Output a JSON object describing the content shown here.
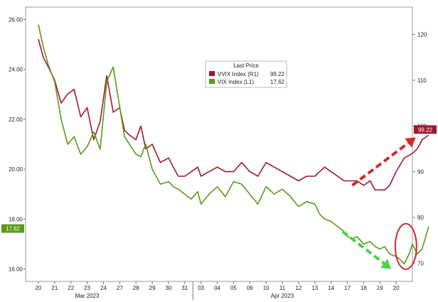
{
  "chart_data": {
    "type": "line",
    "legend_title": "Last Price",
    "legend_position": "top-center",
    "grid": true,
    "x_ticks": [
      "20",
      "21",
      "22",
      "23",
      "24",
      "27",
      "28",
      "29",
      "30",
      "31",
      "03",
      "04",
      "05",
      "06",
      "10",
      "11",
      "12",
      "13",
      "14",
      "17",
      "18",
      "19",
      "20"
    ],
    "x_month_labels": [
      {
        "label": "Mar 2023",
        "at_tick": "23"
      },
      {
        "label": "Apr 2023",
        "at_tick": "11"
      }
    ],
    "y_left": {
      "ylim": [
        15.5,
        26.5
      ],
      "ticks": [
        "16.00",
        "18.00",
        "20.00",
        "22.00",
        "24.00",
        "26.00"
      ]
    },
    "y_right": {
      "ylim": [
        66,
        126
      ],
      "ticks": [
        "70",
        "80",
        "90",
        "100",
        "110",
        "120"
      ]
    },
    "series": [
      {
        "name": "VVIX Index (R1)",
        "last": "99.22",
        "axis": "right",
        "color": "#a0182e",
        "x": [
          0,
          0.3,
          0.6,
          1,
          1.4,
          1.8,
          2.2,
          2.6,
          3,
          3.4,
          3.8,
          4.2,
          4.6,
          5,
          5.3,
          5.6,
          6,
          6.3,
          6.6,
          7,
          7.5,
          8,
          8.3,
          8.6,
          9,
          9.4,
          9.8,
          10,
          10.5,
          11,
          11.5,
          12,
          12.5,
          13,
          13.5,
          14,
          14.5,
          15,
          15.5,
          16,
          16.5,
          17,
          17.3,
          17.6,
          18,
          18.4,
          18.8,
          19,
          19.3,
          19.6,
          20,
          20.4,
          20.7,
          21,
          21.3,
          21.6,
          22,
          22.5,
          23,
          23.3,
          23.6,
          24
        ],
        "values": [
          119,
          115,
          113,
          110,
          105,
          107,
          108,
          102,
          104,
          97,
          101,
          111,
          103,
          104,
          99,
          98,
          97,
          100,
          95,
          96,
          92,
          93,
          91,
          89,
          89,
          90,
          91,
          89,
          90,
          91,
          90,
          90,
          92,
          90,
          89,
          92,
          91,
          90,
          89,
          88,
          89,
          89,
          90,
          91,
          90,
          89,
          88,
          88,
          88,
          88,
          87,
          88,
          86,
          86,
          86,
          87,
          90,
          93,
          94,
          95,
          97,
          98
        ],
        "labels": [
          {
            "text": "99.22",
            "bg": "#a0182e"
          }
        ]
      },
      {
        "name": "VIX Index (L1)",
        "last": "17.62",
        "axis": "left",
        "color": "#5a9a1a",
        "x": [
          0,
          0.3,
          0.6,
          1,
          1.4,
          1.8,
          2.2,
          2.6,
          3,
          3.4,
          3.8,
          4.2,
          4.6,
          5,
          5.3,
          5.6,
          6,
          6.3,
          6.6,
          7,
          7.5,
          8,
          8.3,
          8.6,
          9,
          9.4,
          9.8,
          10,
          10.5,
          11,
          11.5,
          12,
          12.5,
          13,
          13.5,
          14,
          14.5,
          15,
          15.5,
          16,
          16.5,
          17,
          17.3,
          17.6,
          18,
          18.4,
          18.8,
          19,
          19.3,
          19.6,
          20,
          20.4,
          20.7,
          21,
          21.3,
          21.6,
          22,
          22.2,
          22.5,
          22.8,
          23,
          23.3,
          23.6,
          24
        ],
        "values": [
          25.8,
          24.9,
          24.2,
          23.5,
          22.0,
          21.0,
          21.3,
          20.6,
          20.9,
          21.5,
          20.8,
          23.5,
          24.1,
          22.5,
          21.3,
          21.0,
          20.6,
          20.5,
          21.0,
          20.0,
          19.4,
          19.5,
          19.3,
          19.2,
          19.0,
          18.8,
          19.1,
          18.6,
          19.0,
          19.3,
          18.9,
          19.5,
          19.4,
          19.0,
          18.6,
          19.3,
          19.0,
          19.2,
          18.9,
          18.5,
          18.7,
          18.6,
          18.2,
          18.0,
          17.9,
          17.7,
          17.5,
          17.3,
          17.2,
          17.3,
          17.0,
          17.1,
          16.9,
          16.8,
          16.9,
          16.6,
          16.5,
          16.4,
          16.2,
          16.6,
          17.0,
          16.6,
          16.8,
          17.7
        ],
        "labels": [
          {
            "text": "17.62",
            "bg": "#5a9a1a"
          }
        ]
      }
    ],
    "annotations": [
      {
        "type": "dashed-arrow",
        "color": "#d42a2a",
        "from": {
          "x": 19.3,
          "y": 87
        },
        "to": {
          "x": 23.2,
          "y": 97.5
        },
        "axis": "right"
      },
      {
        "type": "dashed-arrow",
        "color": "#45d44a",
        "from": {
          "x": 18.7,
          "y": 17.5
        },
        "to": {
          "x": 21.7,
          "y": 16.0
        },
        "axis": "left"
      },
      {
        "type": "circle",
        "color": "#d02a2a",
        "center": {
          "x": 22.6,
          "y": 16.9
        },
        "axis": "left"
      }
    ]
  }
}
